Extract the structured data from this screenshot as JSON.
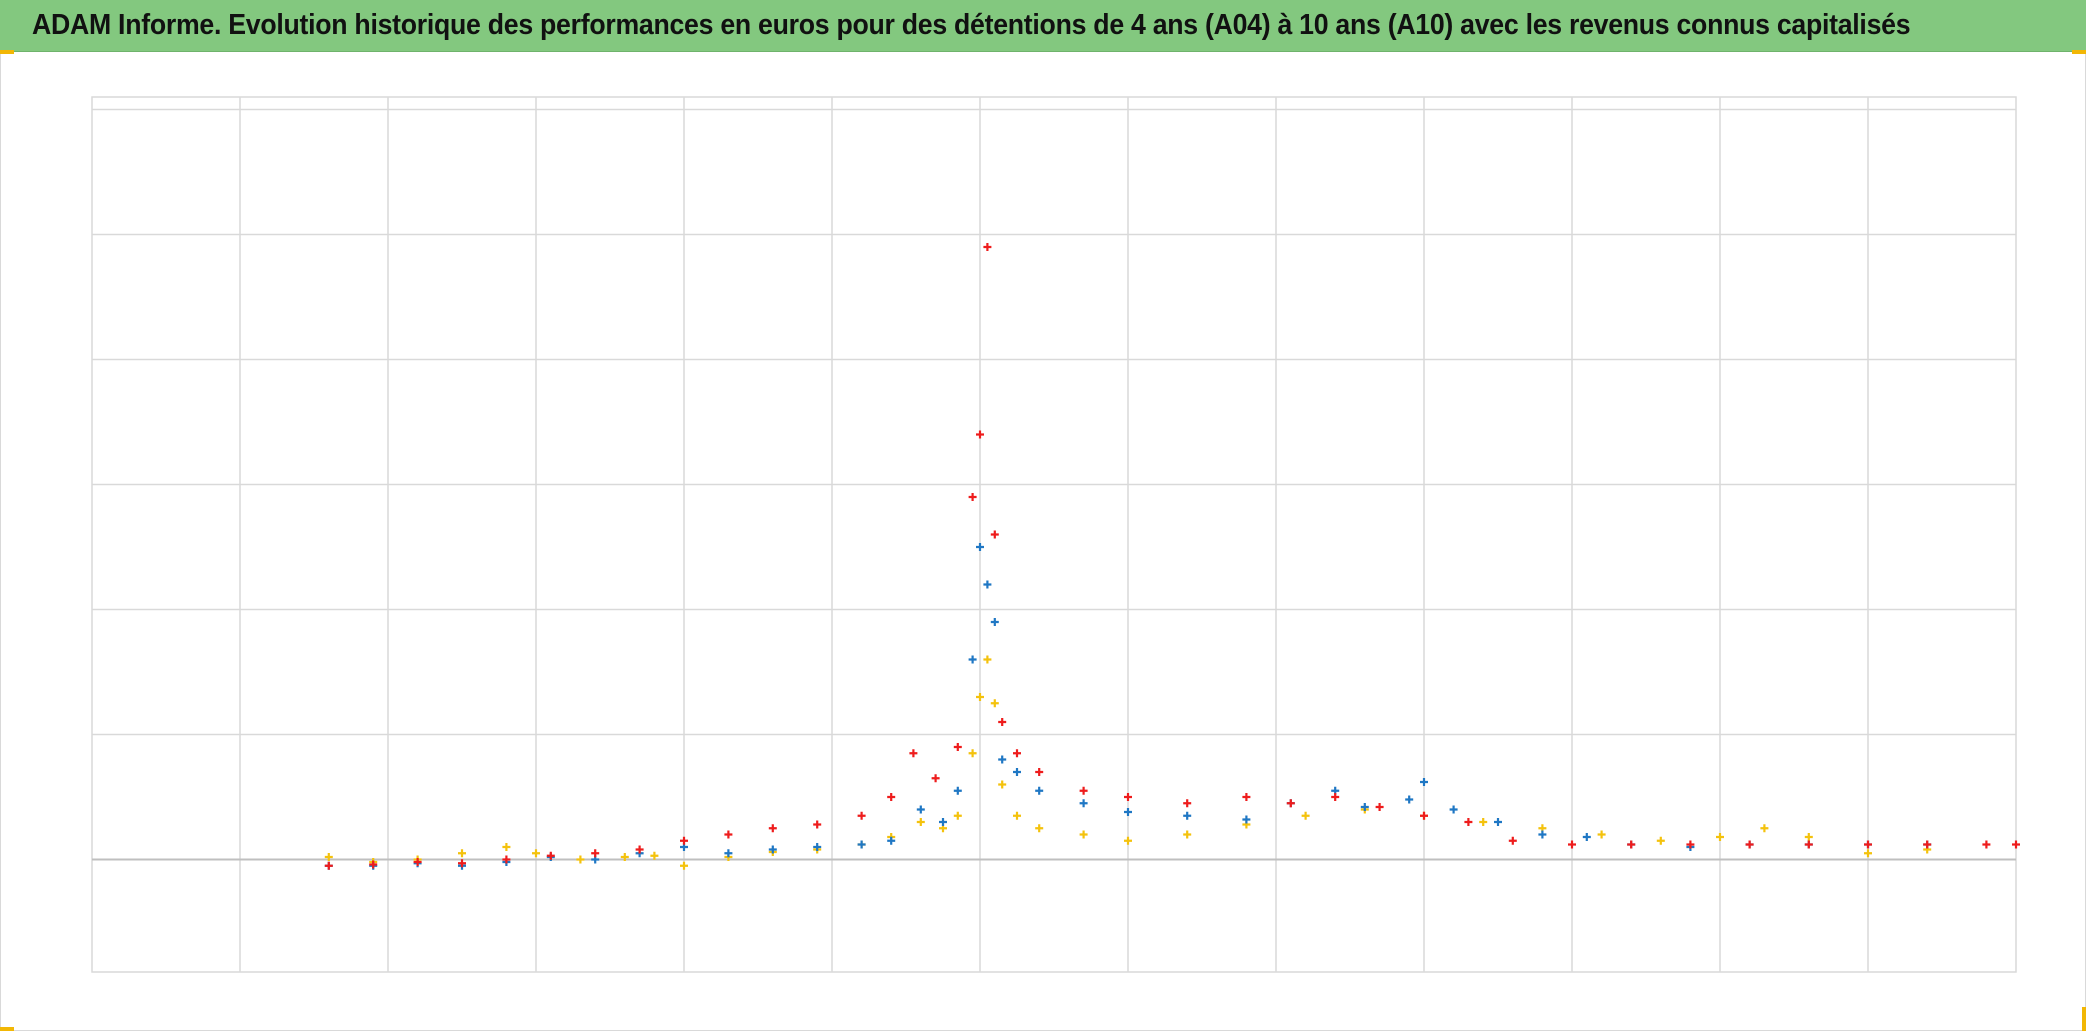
{
  "title": "ADAM Informe. Evolution historique des performances en euros pour des détentions de 4 ans (A04) à 10 ans (A10) avec les revenus connus capitalisés",
  "colors": {
    "title_bar": "#83c87f",
    "grid": "#d9d9d9",
    "zero_line": "#bfbfbf",
    "corner_marks": "#f2b705"
  },
  "chart_data": {
    "type": "scatter",
    "marker": "plus",
    "title": "ADAM Informe. Evolution historique des performances en euros pour des détentions de 4 ans (A04) à 10 ans (A10) avec les revenus connus capitalisés",
    "xlabel": "",
    "ylabel": "",
    "xlim": [
      0,
      13
    ],
    "ylim": [
      -0.9,
      6.1
    ],
    "x_gridlines": 13,
    "y_gridlines": [
      6,
      5,
      4,
      3,
      2,
      1,
      0
    ],
    "zero_line": 0,
    "tick_labels_visible": false,
    "grid": true,
    "legend": "none",
    "series": [
      {
        "color": "#f4c20d",
        "points": [
          [
            1.6,
            0.02
          ],
          [
            1.9,
            -0.02
          ],
          [
            2.2,
            0.0
          ],
          [
            2.5,
            0.05
          ],
          [
            2.8,
            0.1
          ],
          [
            3.0,
            0.05
          ],
          [
            3.3,
            0.0
          ],
          [
            3.6,
            0.02
          ],
          [
            3.8,
            0.03
          ],
          [
            4.0,
            -0.05
          ],
          [
            4.3,
            0.02
          ],
          [
            4.6,
            0.06
          ],
          [
            4.9,
            0.08
          ],
          [
            5.2,
            0.12
          ],
          [
            5.4,
            0.18
          ],
          [
            5.6,
            0.3
          ],
          [
            5.75,
            0.25
          ],
          [
            5.85,
            0.35
          ],
          [
            5.95,
            0.85
          ],
          [
            6.0,
            1.3
          ],
          [
            6.05,
            1.6
          ],
          [
            6.1,
            1.25
          ],
          [
            6.15,
            0.6
          ],
          [
            6.25,
            0.35
          ],
          [
            6.4,
            0.25
          ],
          [
            6.7,
            0.2
          ],
          [
            7.0,
            0.15
          ],
          [
            7.4,
            0.2
          ],
          [
            7.8,
            0.28
          ],
          [
            8.2,
            0.35
          ],
          [
            8.6,
            0.4
          ],
          [
            9.0,
            0.35
          ],
          [
            9.4,
            0.3
          ],
          [
            9.8,
            0.25
          ],
          [
            10.2,
            0.2
          ],
          [
            10.6,
            0.15
          ],
          [
            11.0,
            0.18
          ],
          [
            11.3,
            0.25
          ],
          [
            11.6,
            0.18
          ],
          [
            12.0,
            0.05
          ],
          [
            12.4,
            0.08
          ]
        ]
      },
      {
        "color": "#1f77c4",
        "points": [
          [
            1.6,
            -0.05
          ],
          [
            1.9,
            -0.05
          ],
          [
            2.2,
            -0.03
          ],
          [
            2.5,
            -0.05
          ],
          [
            2.8,
            -0.02
          ],
          [
            3.1,
            0.02
          ],
          [
            3.4,
            0.0
          ],
          [
            3.7,
            0.05
          ],
          [
            4.0,
            0.1
          ],
          [
            4.3,
            0.05
          ],
          [
            4.6,
            0.08
          ],
          [
            4.9,
            0.1
          ],
          [
            5.2,
            0.12
          ],
          [
            5.4,
            0.15
          ],
          [
            5.6,
            0.4
          ],
          [
            5.75,
            0.3
          ],
          [
            5.85,
            0.55
          ],
          [
            5.95,
            1.6
          ],
          [
            6.0,
            2.5
          ],
          [
            6.05,
            2.2
          ],
          [
            6.1,
            1.9
          ],
          [
            6.15,
            0.8
          ],
          [
            6.25,
            0.7
          ],
          [
            6.4,
            0.55
          ],
          [
            6.7,
            0.45
          ],
          [
            7.0,
            0.38
          ],
          [
            7.4,
            0.35
          ],
          [
            7.8,
            0.32
          ],
          [
            8.1,
            0.45
          ],
          [
            8.4,
            0.55
          ],
          [
            8.6,
            0.42
          ],
          [
            8.9,
            0.48
          ],
          [
            9.0,
            0.62
          ],
          [
            9.2,
            0.4
          ],
          [
            9.5,
            0.3
          ],
          [
            9.8,
            0.2
          ],
          [
            10.1,
            0.18
          ],
          [
            10.4,
            0.12
          ],
          [
            10.8,
            0.1
          ],
          [
            11.2,
            0.12
          ],
          [
            11.6,
            0.12
          ],
          [
            12.0,
            0.12
          ],
          [
            12.4,
            0.12
          ]
        ]
      },
      {
        "color": "#ee1c1c",
        "points": [
          [
            1.6,
            -0.05
          ],
          [
            1.9,
            -0.04
          ],
          [
            2.2,
            -0.02
          ],
          [
            2.5,
            -0.03
          ],
          [
            2.8,
            0.0
          ],
          [
            3.1,
            0.03
          ],
          [
            3.4,
            0.05
          ],
          [
            3.7,
            0.08
          ],
          [
            4.0,
            0.15
          ],
          [
            4.3,
            0.2
          ],
          [
            4.6,
            0.25
          ],
          [
            4.9,
            0.28
          ],
          [
            5.2,
            0.35
          ],
          [
            5.4,
            0.5
          ],
          [
            5.55,
            0.85
          ],
          [
            5.7,
            0.65
          ],
          [
            5.85,
            0.9
          ],
          [
            5.95,
            2.9
          ],
          [
            6.0,
            3.4
          ],
          [
            6.05,
            4.9
          ],
          [
            6.1,
            2.6
          ],
          [
            6.15,
            1.1
          ],
          [
            6.25,
            0.85
          ],
          [
            6.4,
            0.7
          ],
          [
            6.7,
            0.55
          ],
          [
            7.0,
            0.5
          ],
          [
            7.4,
            0.45
          ],
          [
            7.8,
            0.5
          ],
          [
            8.1,
            0.45
          ],
          [
            8.4,
            0.5
          ],
          [
            8.7,
            0.42
          ],
          [
            9.0,
            0.35
          ],
          [
            9.3,
            0.3
          ],
          [
            9.6,
            0.15
          ],
          [
            10.0,
            0.12
          ],
          [
            10.4,
            0.12
          ],
          [
            10.8,
            0.12
          ],
          [
            11.2,
            0.12
          ],
          [
            11.6,
            0.12
          ],
          [
            12.0,
            0.12
          ],
          [
            12.4,
            0.12
          ],
          [
            12.8,
            0.12
          ],
          [
            13.0,
            0.12
          ]
        ]
      }
    ]
  }
}
